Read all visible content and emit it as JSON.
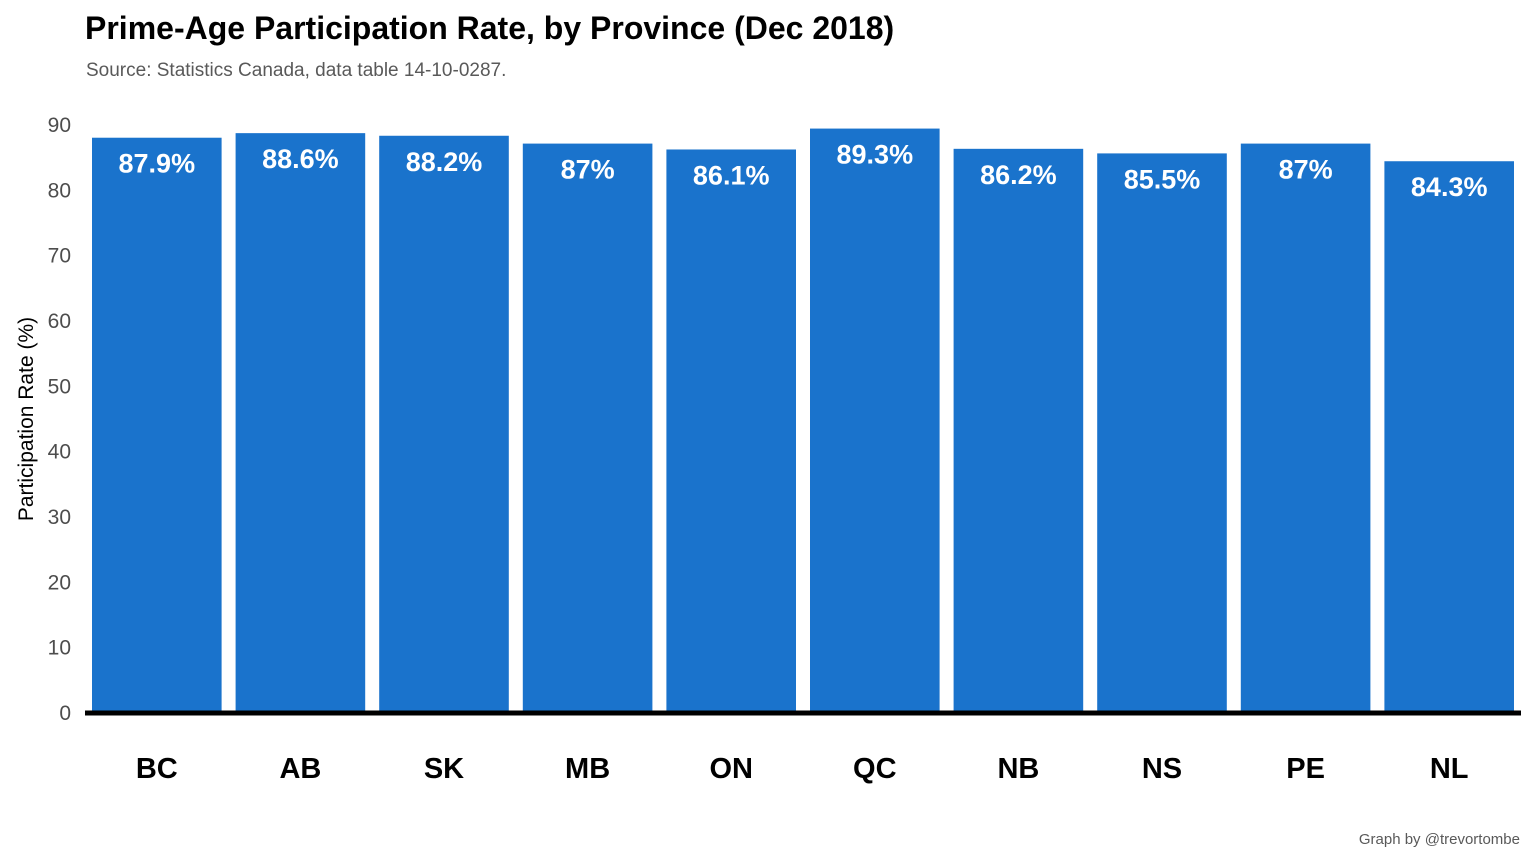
{
  "chart_data": {
    "type": "bar",
    "title": "Prime-Age Participation Rate, by Province (Dec 2018)",
    "subtitle": "Source: Statistics Canada, data table 14-10-0287.",
    "caption": "Graph by @trevortombe",
    "ylabel": "Participation Rate (%)",
    "xlabel": "",
    "ylim": [
      0,
      90
    ],
    "yticks": [
      0,
      10,
      20,
      30,
      40,
      50,
      60,
      70,
      80,
      90
    ],
    "categories": [
      "BC",
      "AB",
      "SK",
      "MB",
      "ON",
      "QC",
      "NB",
      "NS",
      "PE",
      "NL"
    ],
    "values": [
      87.9,
      88.6,
      88.2,
      87,
      86.1,
      89.3,
      86.2,
      85.5,
      87,
      84.3
    ],
    "data_labels": [
      "87.9%",
      "88.6%",
      "88.2%",
      "87%",
      "86.1%",
      "89.3%",
      "86.2%",
      "85.5%",
      "87%",
      "84.3%"
    ],
    "bar_color": "#1a73cc",
    "axis_line_color": "#000000",
    "grid": false,
    "legend": "none"
  }
}
